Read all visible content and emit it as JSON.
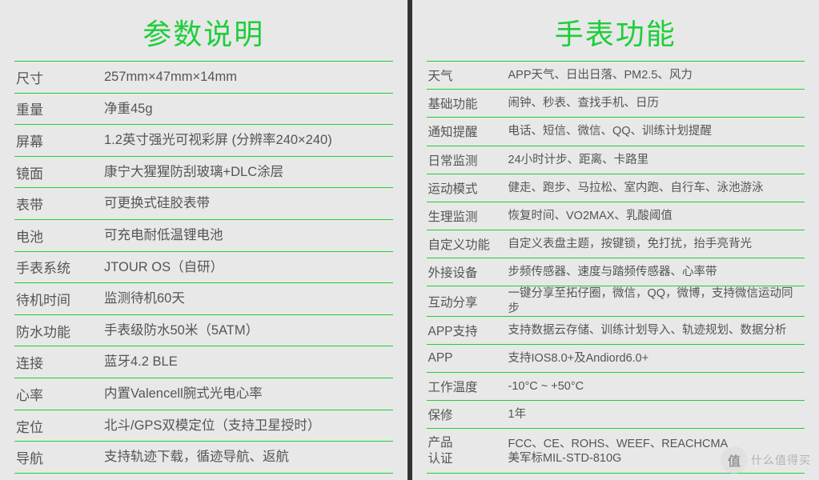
{
  "colors": {
    "accent": "#1dce3a",
    "panel_bg": "#e8e8e8",
    "text": "#555555"
  },
  "left": {
    "title": "参数说明",
    "rows": [
      {
        "label": "尺寸",
        "value": "257mm×47mm×14mm"
      },
      {
        "label": "重量",
        "value": "净重45g"
      },
      {
        "label": "屏幕",
        "value": "1.2英寸强光可视彩屏 (分辨率240×240)"
      },
      {
        "label": "镜面",
        "value": "康宁大猩猩防刮玻璃+DLC涂层"
      },
      {
        "label": "表带",
        "value": "可更换式硅胶表带"
      },
      {
        "label": "电池",
        "value": "可充电耐低温锂电池"
      },
      {
        "label": "手表系统",
        "value": "JTOUR OS（自研）"
      },
      {
        "label": "待机时间",
        "value": "监测待机60天"
      },
      {
        "label": "防水功能",
        "value": "手表级防水50米（5ATM）"
      },
      {
        "label": "连接",
        "value": "蓝牙4.2 BLE"
      },
      {
        "label": "心率",
        "value": "内置Valencell腕式光电心率"
      },
      {
        "label": "定位",
        "value": "北斗/GPS双模定位（支持卫星授时）"
      },
      {
        "label": "导航",
        "value": "支持轨迹下载，循迹导航、返航"
      }
    ]
  },
  "right": {
    "title": "手表功能",
    "rows": [
      {
        "label": "天气",
        "value": "APP天气、日出日落、PM2.5、风力"
      },
      {
        "label": "基础功能",
        "value": "闹钟、秒表、查找手机、日历"
      },
      {
        "label": "通知提醒",
        "value": "电话、短信、微信、QQ、训练计划提醒"
      },
      {
        "label": "日常监测",
        "value": "24小时计步、距离、卡路里"
      },
      {
        "label": "运动模式",
        "value": "健走、跑步、马拉松、室内跑、自行车、泳池游泳"
      },
      {
        "label": "生理监测",
        "value": "恢复时间、VO2MAX、乳酸阈值"
      },
      {
        "label": "自定义功能",
        "value": "自定义表盘主题，按键锁，免打扰，抬手亮背光"
      },
      {
        "label": "外接设备",
        "value": "步频传感器、速度与踏频传感器、心率带"
      },
      {
        "label": "互动分享",
        "value": "一键分享至拓仔圈，微信，QQ，微博，支持微信运动同步"
      },
      {
        "label": "APP支持",
        "value": "支持数据云存储、训练计划导入、轨迹规划、数据分析"
      },
      {
        "label": "APP",
        "value": "支持IOS8.0+及Andiord6.0+"
      },
      {
        "label": "工作温度",
        "value": "-10°C ~ +50°C"
      },
      {
        "label": "保修",
        "value": "1年"
      },
      {
        "label": "产品\n认证",
        "value": "FCC、CE、ROHS、WEEF、REACHCMA\n美军标MIL-STD-810G",
        "tall": true
      }
    ]
  },
  "watermark": {
    "badge": "值",
    "text": "什么值得买"
  }
}
